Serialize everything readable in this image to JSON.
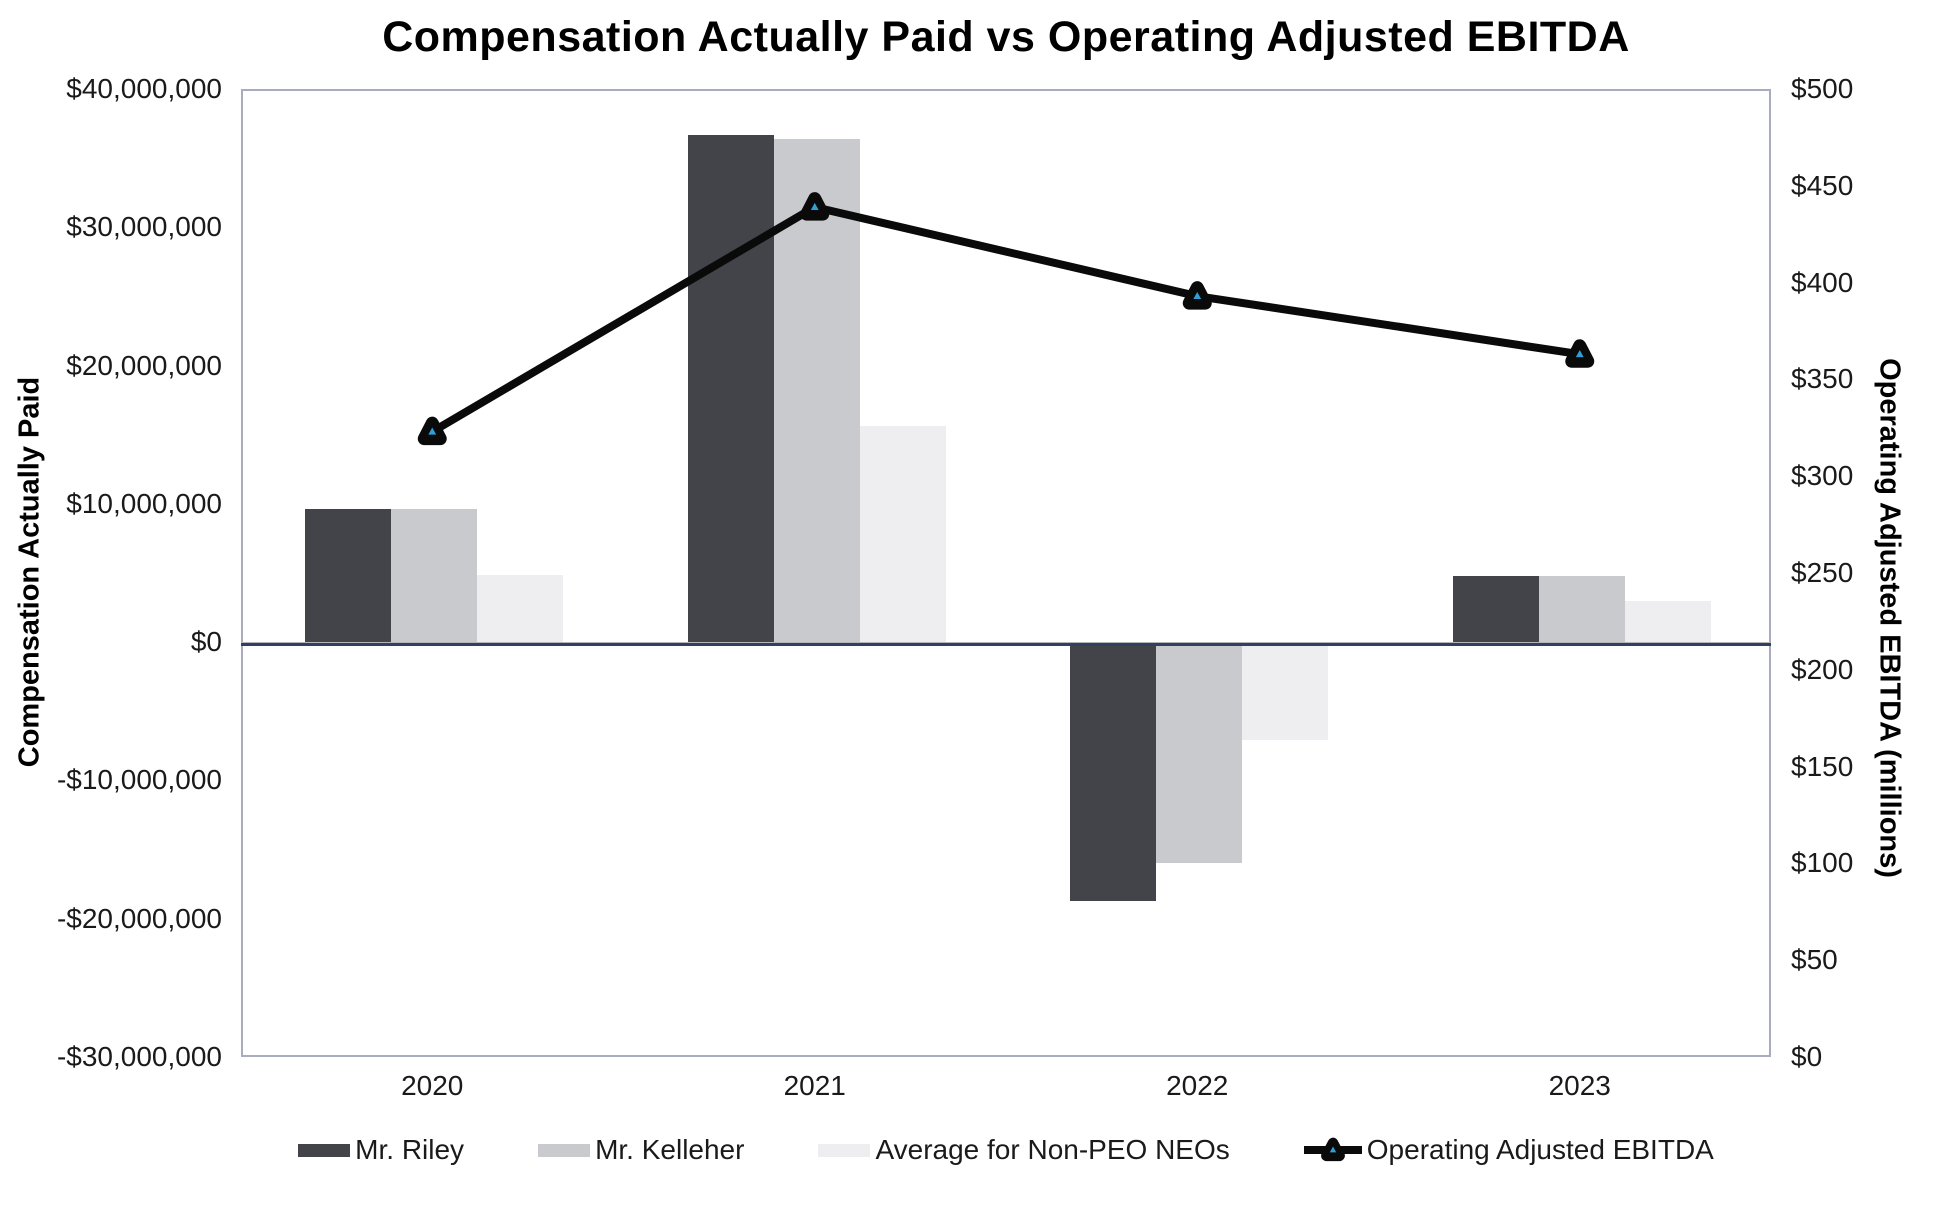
{
  "title": "Compensation Actually Paid vs Operating Adjusted EBITDA",
  "colors": {
    "background": "#ffffff",
    "plot_border": "#a9abbf",
    "zero_line": "#333e63",
    "line_series": "#0a0a0a",
    "marker_inner": "#2e9fd9"
  },
  "chart_data": {
    "type": "combo",
    "subtype": "grouped-bars-with-line",
    "categories": [
      "2020",
      "2021",
      "2022",
      "2023"
    ],
    "series": [
      {
        "name": "Mr. Riley",
        "type": "bar",
        "axis": "left",
        "color": "#424449",
        "values": [
          9800000,
          36800000,
          -18600000,
          4900000
        ]
      },
      {
        "name": "Mr. Kelleher",
        "type": "bar",
        "axis": "left",
        "color": "#c9cacd",
        "values": [
          9800000,
          36500000,
          -15800000,
          4900000
        ]
      },
      {
        "name": "Average for Non-PEO NEOs",
        "type": "bar",
        "axis": "left",
        "color": "#eeeef0",
        "values": [
          5000000,
          15800000,
          -6900000,
          3100000
        ]
      },
      {
        "name": "Operating Adjusted EBITDA",
        "type": "line",
        "axis": "right",
        "color": "#0a0a0a",
        "marker": "triangle",
        "marker_inner_color": "#2e9fd9",
        "values": [
          323,
          439,
          393,
          363
        ]
      }
    ],
    "left_axis": {
      "title": "Compensation Actually Paid",
      "range": [
        -30000000,
        40000000
      ],
      "ticks": [
        {
          "label": "$40,000,000",
          "value": 40000000
        },
        {
          "label": "$30,000,000",
          "value": 30000000
        },
        {
          "label": "$20,000,000",
          "value": 20000000
        },
        {
          "label": "$10,000,000",
          "value": 10000000
        },
        {
          "label": "$0",
          "value": 0
        },
        {
          "label": "-$10,000,000",
          "value": -10000000
        },
        {
          "label": "-$20,000,000",
          "value": -20000000
        },
        {
          "label": "-$30,000,000",
          "value": -30000000
        }
      ]
    },
    "right_axis": {
      "title": "Operating Adjusted EBITDA (millions)",
      "range": [
        0,
        500
      ],
      "ticks": [
        {
          "label": "$500",
          "value": 500
        },
        {
          "label": "$450",
          "value": 450
        },
        {
          "label": "$400",
          "value": 400
        },
        {
          "label": "$350",
          "value": 350
        },
        {
          "label": "$300",
          "value": 300
        },
        {
          "label": "$250",
          "value": 250
        },
        {
          "label": "$200",
          "value": 200
        },
        {
          "label": "$150",
          "value": 150
        },
        {
          "label": "$100",
          "value": 100
        },
        {
          "label": "$50",
          "value": 50
        },
        {
          "label": "$0",
          "value": 0
        }
      ]
    },
    "legend_position": "bottom",
    "gridlines": false,
    "zero_line": true
  }
}
